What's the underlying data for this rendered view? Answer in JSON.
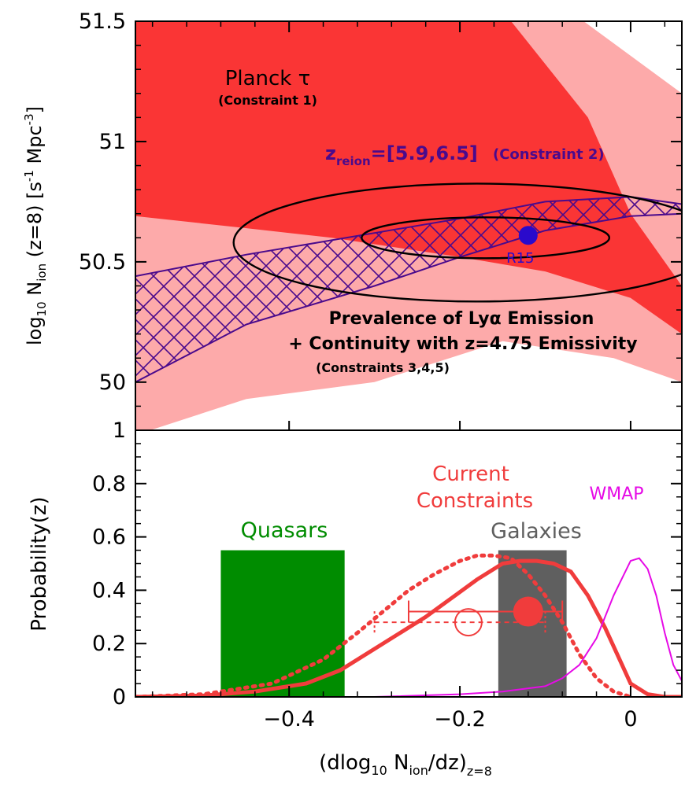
{
  "chart_data": [
    {
      "type": "area",
      "panel": "top",
      "ylabel_parts": [
        "log",
        "10",
        "N",
        "ion",
        "(z=8) [s",
        "-1",
        "Mpc",
        "-3",
        "]"
      ],
      "xlim": [
        -0.58,
        0.06
      ],
      "ylim": [
        49.8,
        51.5
      ],
      "yticks": [
        50,
        50.5,
        51,
        51.5
      ],
      "ytick_labels": [
        "50",
        "50.5",
        "51",
        "51.5"
      ],
      "regions": [
        {
          "name": "light",
          "color": "#fdaaaa",
          "polygon": [
            [
              -0.58,
              51.5
            ],
            [
              -0.055,
              51.5
            ],
            [
              0.06,
              51.2
            ],
            [
              0.06,
              50.0
            ],
            [
              -0.02,
              50.1
            ],
            [
              -0.15,
              50.17
            ],
            [
              -0.3,
              50.0
            ],
            [
              -0.45,
              49.93
            ],
            [
              -0.58,
              49.78
            ]
          ]
        },
        {
          "name": "dark",
          "color": "#fa3535",
          "polygon": [
            [
              -0.58,
              51.5
            ],
            [
              -0.14,
              51.5
            ],
            [
              -0.05,
              51.1
            ],
            [
              0.0,
              50.7
            ],
            [
              0.06,
              50.4
            ],
            [
              0.06,
              50.2
            ],
            [
              0.0,
              50.35
            ],
            [
              -0.1,
              50.46
            ],
            [
              -0.2,
              50.52
            ],
            [
              -0.35,
              50.6
            ],
            [
              -0.45,
              50.64
            ],
            [
              -0.58,
              50.69
            ]
          ]
        }
      ],
      "hatched_band": {
        "color": "#4a0a8c",
        "upper": [
          [
            -0.58,
            50.44
          ],
          [
            -0.45,
            50.53
          ],
          [
            -0.3,
            50.62
          ],
          [
            -0.2,
            50.68
          ],
          [
            -0.1,
            50.75
          ],
          [
            0.0,
            50.77
          ],
          [
            0.06,
            50.74
          ]
        ],
        "lower": [
          [
            -0.58,
            50.0
          ],
          [
            -0.45,
            50.24
          ],
          [
            -0.3,
            50.4
          ],
          [
            -0.2,
            50.52
          ],
          [
            -0.1,
            50.63
          ],
          [
            0.0,
            50.69
          ],
          [
            0.06,
            50.7
          ]
        ]
      },
      "ellipses": [
        {
          "cx": -0.17,
          "cy": 50.6,
          "rx": 0.145,
          "ry": 0.085,
          "color": "#000000"
        },
        {
          "cx": -0.18,
          "cy": 50.58,
          "rx": 0.285,
          "ry": 0.245,
          "color": "#000000"
        }
      ],
      "point": {
        "label": "R15",
        "x": -0.12,
        "y": 50.61,
        "color": "#2a0acc"
      },
      "annotations": {
        "planck": "Planck τ",
        "constraint1": "(Constraint 1)",
        "zreion_z": "z",
        "zreion_sub": "reion",
        "zreion_value": "=[5.9,6.5]",
        "constraint2": "(Constraint 2)",
        "prevalence": "Prevalence of Lyα Emission",
        "continuity": "+ Continuity with z=4.75 Emissivity",
        "constraints345": "(Constraints 3,4,5)"
      }
    },
    {
      "type": "line",
      "panel": "bottom",
      "ylabel": "Probability(z)",
      "xlabel_parts": [
        "(dlog",
        "10",
        "N",
        "ion",
        "/dz)",
        "z=8"
      ],
      "xlim": [
        -0.58,
        0.06
      ],
      "ylim": [
        0,
        1
      ],
      "yticks": [
        0,
        0.2,
        0.4,
        0.6,
        0.8,
        1
      ],
      "ytick_labels": [
        "0",
        "0.2",
        "0.4",
        "0.6",
        "0.8",
        "1"
      ],
      "xticks": [
        -0.4,
        -0.2,
        0
      ],
      "xtick_labels": [
        "−0.4",
        "−0.2",
        "0"
      ],
      "bands": [
        {
          "name": "Quasars",
          "x0": -0.48,
          "x1": -0.335,
          "height": 0.55,
          "color": "#008c00"
        },
        {
          "name": "Galaxies",
          "x0": -0.155,
          "x1": -0.075,
          "height": 0.55,
          "color": "#5f5f5f"
        }
      ],
      "labels": {
        "quasars": "Quasars",
        "galaxies": "Galaxies",
        "current1": "Current",
        "current2": "Constraints",
        "wmap": "WMAP"
      },
      "colors": {
        "current": "#f03c3c",
        "wmap": "#e60ae6",
        "quasars": "#008c00",
        "galaxies": "#5f5f5f"
      },
      "series": [
        {
          "name": "Current Constraints",
          "style": "solid",
          "color": "#f03c3c",
          "x": [
            -0.58,
            -0.5,
            -0.44,
            -0.38,
            -0.34,
            -0.3,
            -0.27,
            -0.24,
            -0.21,
            -0.18,
            -0.15,
            -0.13,
            -0.11,
            -0.09,
            -0.07,
            -0.05,
            -0.03,
            -0.01,
            0.0,
            0.02,
            0.04,
            0.06
          ],
          "y": [
            0.0,
            0.005,
            0.02,
            0.05,
            0.1,
            0.18,
            0.24,
            0.3,
            0.37,
            0.44,
            0.5,
            0.51,
            0.51,
            0.5,
            0.47,
            0.38,
            0.26,
            0.12,
            0.05,
            0.01,
            0.0,
            0.0
          ]
        },
        {
          "name": "Current Constraints (dotted)",
          "style": "dotted",
          "color": "#f03c3c",
          "x": [
            -0.58,
            -0.5,
            -0.42,
            -0.36,
            -0.32,
            -0.29,
            -0.26,
            -0.23,
            -0.2,
            -0.18,
            -0.16,
            -0.14,
            -0.12,
            -0.1,
            -0.08,
            -0.06,
            -0.04,
            -0.02,
            0.0
          ],
          "y": [
            0.0,
            0.01,
            0.05,
            0.14,
            0.24,
            0.32,
            0.4,
            0.46,
            0.51,
            0.53,
            0.53,
            0.52,
            0.46,
            0.38,
            0.28,
            0.16,
            0.07,
            0.02,
            0.0
          ]
        },
        {
          "name": "WMAP",
          "style": "solid",
          "color": "#e60ae6",
          "x": [
            -0.3,
            -0.2,
            -0.15,
            -0.1,
            -0.08,
            -0.06,
            -0.04,
            -0.02,
            0.0,
            0.01,
            0.02,
            0.03,
            0.04,
            0.05,
            0.06
          ],
          "y": [
            0.0,
            0.01,
            0.02,
            0.04,
            0.07,
            0.12,
            0.22,
            0.38,
            0.51,
            0.52,
            0.48,
            0.38,
            0.24,
            0.12,
            0.06
          ]
        }
      ],
      "errorbars": [
        {
          "x": -0.12,
          "y": 0.32,
          "xlo": -0.26,
          "xhi": -0.08,
          "marker": "filled",
          "style": "solid"
        },
        {
          "x": -0.19,
          "y": 0.28,
          "xlo": -0.3,
          "xhi": -0.1,
          "marker": "open",
          "style": "dotted"
        }
      ]
    }
  ]
}
